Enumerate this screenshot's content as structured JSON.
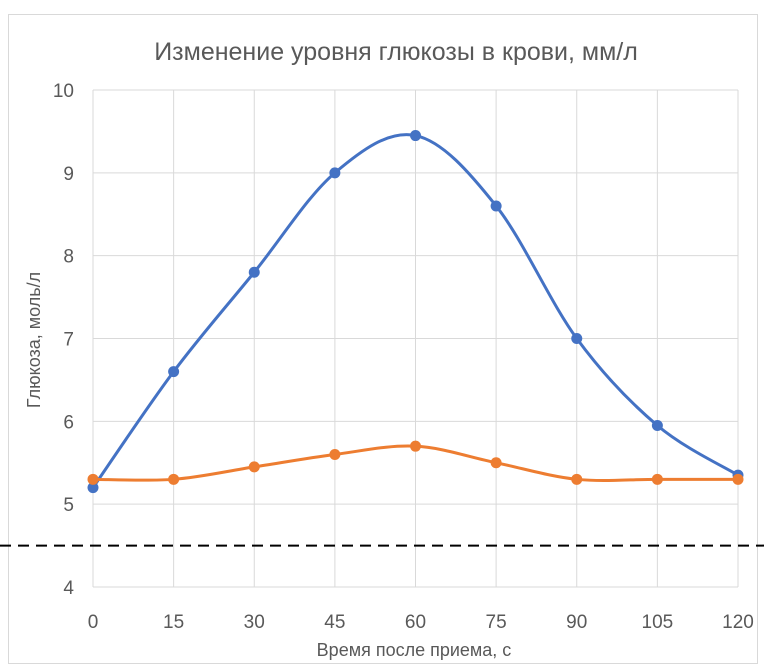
{
  "chart_data": {
    "type": "line",
    "title": "Изменение уровня глюкозы в крови, мм/л",
    "xlabel": "Время после приема, с",
    "ylabel": "Глюкоза, моль/л",
    "x": [
      0,
      15,
      30,
      45,
      60,
      75,
      90,
      105,
      120
    ],
    "x_tick_labels": [
      "0",
      "15",
      "30",
      "45",
      "60",
      "75",
      "90",
      "105",
      "120"
    ],
    "y_tick_labels": [
      "4",
      "5",
      "6",
      "7",
      "8",
      "9",
      "10"
    ],
    "xlim": [
      0,
      120
    ],
    "ylim": [
      4,
      10
    ],
    "grid": true,
    "smooth": true,
    "series": [
      {
        "color": "#4472c4",
        "values": [
          5.2,
          6.6,
          7.8,
          9.0,
          9.45,
          8.6,
          7.0,
          5.95,
          5.35
        ]
      },
      {
        "color": "#ed7d31",
        "values": [
          5.3,
          5.3,
          5.45,
          5.6,
          5.7,
          5.5,
          5.3,
          5.3,
          5.3
        ]
      }
    ],
    "reference_line": {
      "y": 4.5,
      "style": "dashed",
      "color": "#000000"
    }
  }
}
